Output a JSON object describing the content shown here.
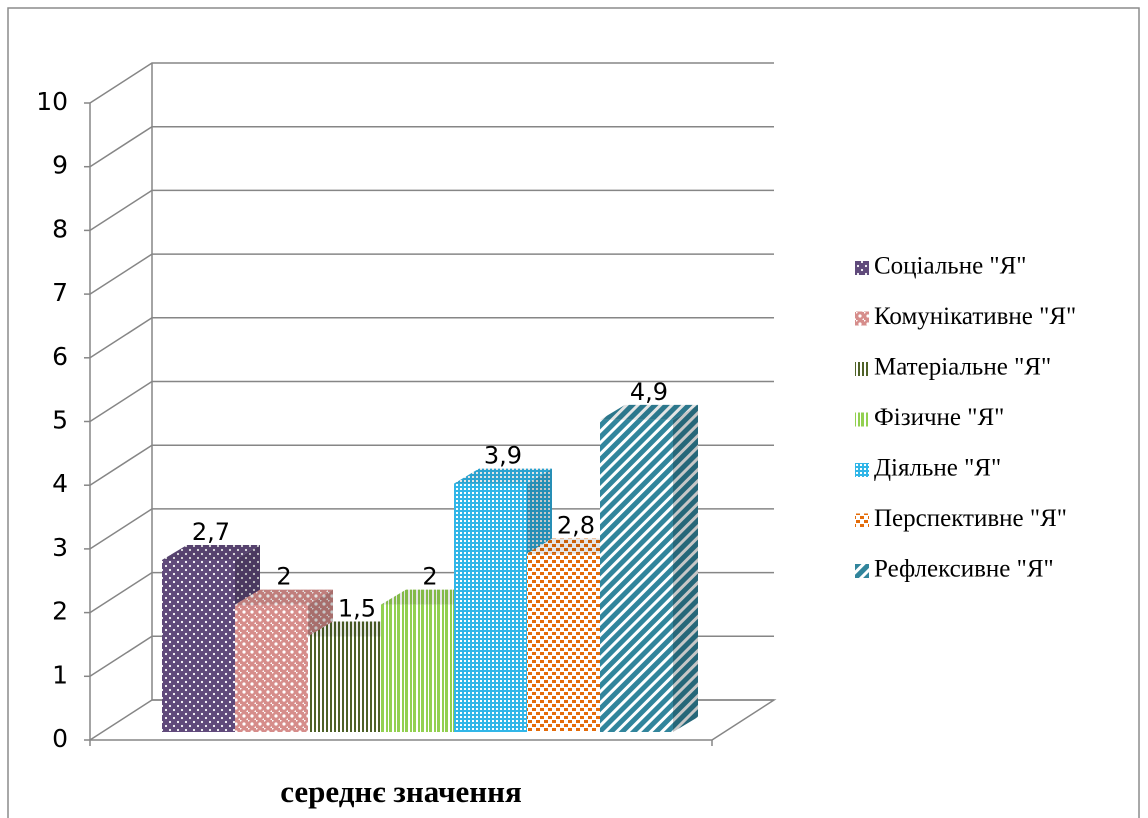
{
  "chart_data": {
    "type": "bar",
    "categories": [
      "середнє значення"
    ],
    "series": [
      {
        "name": "Соціальне \"Я\"",
        "color": "#604a7b",
        "values": [
          2.7
        ],
        "value_labels": [
          "2,7"
        ]
      },
      {
        "name": "Комунікативне \"Я\"",
        "color": "#c0504d",
        "values": [
          2
        ],
        "value_labels": [
          "2"
        ]
      },
      {
        "name": "Матеріальне \"Я\"",
        "color": "#4f6228",
        "values": [
          1.5
        ],
        "value_labels": [
          "1,5"
        ]
      },
      {
        "name": "Фізичне \"Я\"",
        "color": "#92d050",
        "values": [
          2
        ],
        "value_labels": [
          "2"
        ]
      },
      {
        "name": "Діяльне \"Я\"",
        "color": "#31b6e8",
        "values": [
          3.9
        ],
        "value_labels": [
          "3,9"
        ]
      },
      {
        "name": "Перспективне \"Я\"",
        "color": "#e46c0a",
        "values": [
          2.8
        ],
        "value_labels": [
          "2,8"
        ]
      },
      {
        "name": "Рефлексивне \"Я\"",
        "color": "#31859c",
        "values": [
          4.9
        ],
        "value_labels": [
          "4,9"
        ]
      }
    ],
    "ylim": [
      0,
      10
    ],
    "yticks": [
      0,
      1,
      2,
      3,
      4,
      5,
      6,
      7,
      8,
      9,
      10
    ],
    "grid": true,
    "legend": "right"
  }
}
